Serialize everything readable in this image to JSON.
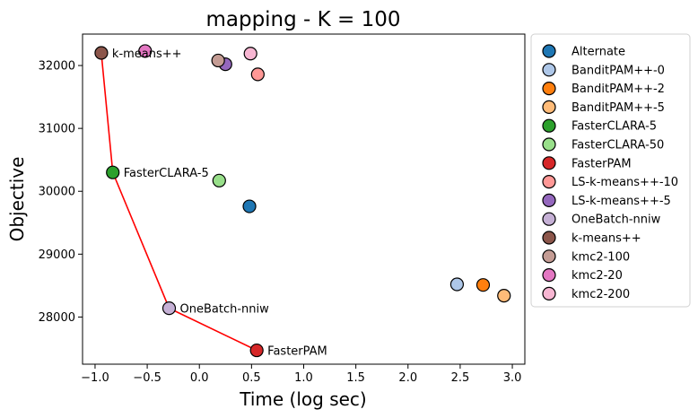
{
  "chart_data": {
    "type": "scatter",
    "title": "mapping - K = 100",
    "xlabel": "Time (log sec)",
    "ylabel": "Objective",
    "xlim": [
      -1.12,
      3.12
    ],
    "ylim": [
      27250,
      32500
    ],
    "xticks": [
      -1.0,
      -0.5,
      0.0,
      0.5,
      1.0,
      1.5,
      2.0,
      2.5,
      3.0
    ],
    "xtick_labels": [
      "−1.0",
      "−0.5",
      "0.0",
      "0.5",
      "1.0",
      "1.5",
      "2.0",
      "2.5",
      "3.0"
    ],
    "yticks": [
      28000,
      29000,
      30000,
      31000,
      32000
    ],
    "ytick_labels": [
      "28000",
      "29000",
      "30000",
      "31000",
      "32000"
    ],
    "legend_position": "outside-right",
    "series": [
      {
        "name": "Alternate",
        "color": "#1f77b4",
        "points": [
          [
            0.48,
            29760
          ]
        ]
      },
      {
        "name": "BanditPAM++-0",
        "color": "#aec7e8",
        "points": [
          [
            2.47,
            28520
          ]
        ]
      },
      {
        "name": "BanditPAM++-2",
        "color": "#ff7f0e",
        "points": [
          [
            2.72,
            28510
          ]
        ]
      },
      {
        "name": "BanditPAM++-5",
        "color": "#ffbb78",
        "points": [
          [
            2.92,
            28340
          ]
        ]
      },
      {
        "name": "FasterCLARA-5",
        "color": "#2ca02c",
        "points": [
          [
            -0.83,
            30300
          ]
        ]
      },
      {
        "name": "FasterCLARA-50",
        "color": "#98df8a",
        "points": [
          [
            0.19,
            30170
          ]
        ]
      },
      {
        "name": "FasterPAM",
        "color": "#d62728",
        "points": [
          [
            0.55,
            27470
          ]
        ]
      },
      {
        "name": "LS-k-means++-10",
        "color": "#ff9896",
        "points": [
          [
            0.56,
            31860
          ]
        ]
      },
      {
        "name": "LS-k-means++-5",
        "color": "#9467bd",
        "points": [
          [
            0.25,
            32020
          ]
        ]
      },
      {
        "name": "OneBatch-nniw",
        "color": "#c5b0d5",
        "points": [
          [
            -0.29,
            28140
          ]
        ]
      },
      {
        "name": "k-means++",
        "color": "#8c564b",
        "points": [
          [
            -0.94,
            32200
          ]
        ]
      },
      {
        "name": "kmc2-100",
        "color": "#c49c94",
        "points": [
          [
            0.18,
            32080
          ]
        ]
      },
      {
        "name": "kmc2-20",
        "color": "#e377c2",
        "points": [
          [
            -0.52,
            32230
          ]
        ]
      },
      {
        "name": "kmc2-200",
        "color": "#f7b6d2",
        "points": [
          [
            0.49,
            32190
          ]
        ]
      }
    ],
    "pareto_front": {
      "color": "#ff0000",
      "points": [
        [
          -0.94,
          32200
        ],
        [
          -0.83,
          30300
        ],
        [
          -0.29,
          28140
        ],
        [
          0.55,
          27470
        ]
      ]
    },
    "annotations": [
      {
        "text": "k-means++",
        "x": -0.94,
        "y": 32200
      },
      {
        "text": "FasterCLARA-5",
        "x": -0.83,
        "y": 30300
      },
      {
        "text": "OneBatch-nniw",
        "x": -0.29,
        "y": 28140
      },
      {
        "text": "FasterPAM",
        "x": 0.55,
        "y": 27470
      }
    ]
  }
}
